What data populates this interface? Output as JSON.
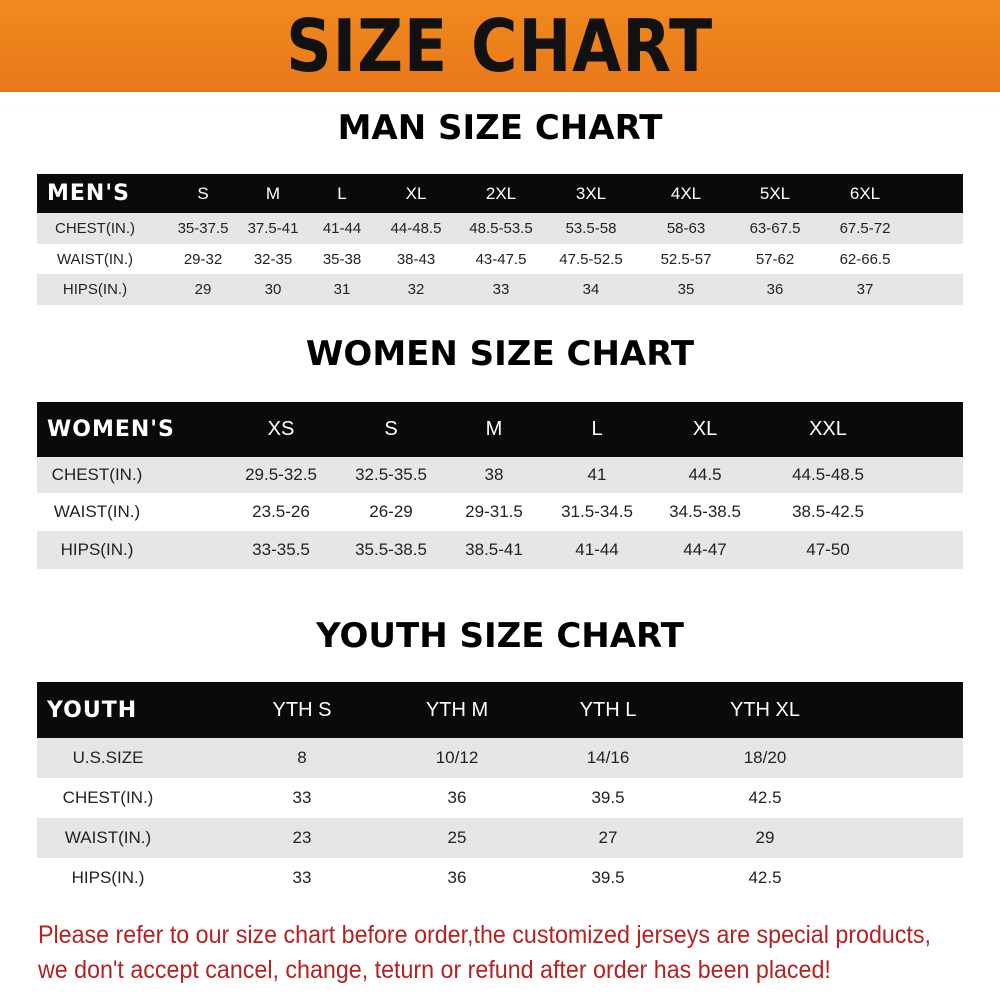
{
  "banner": "SIZE CHART",
  "men": {
    "title": "MAN SIZE CHART",
    "header": [
      "MEN'S",
      "S",
      "M",
      "L",
      "XL",
      "2XL",
      "3XL",
      "4XL",
      "5XL",
      "6XL"
    ],
    "rows": [
      [
        "CHEST(IN.)",
        "35-37.5",
        "37.5-41",
        "41-44",
        "44-48.5",
        "48.5-53.5",
        "53.5-58",
        "58-63",
        "63-67.5",
        "67.5-72"
      ],
      [
        "WAIST(IN.)",
        "29-32",
        "32-35",
        "35-38",
        "38-43",
        "43-47.5",
        "47.5-52.5",
        "52.5-57",
        "57-62",
        "62-66.5"
      ],
      [
        "HIPS(IN.)",
        "29",
        "30",
        "31",
        "32",
        "33",
        "34",
        "35",
        "36",
        "37"
      ]
    ]
  },
  "women": {
    "title": "WOMEN SIZE CHART",
    "header": [
      "WOMEN'S",
      "XS",
      "S",
      "M",
      "L",
      "XL",
      "XXL"
    ],
    "rows": [
      [
        "CHEST(IN.)",
        "29.5-32.5",
        "32.5-35.5",
        "38",
        "41",
        "44.5",
        "44.5-48.5"
      ],
      [
        "WAIST(IN.)",
        "23.5-26",
        "26-29",
        "29-31.5",
        "31.5-34.5",
        "34.5-38.5",
        "38.5-42.5"
      ],
      [
        "HIPS(IN.)",
        "33-35.5",
        "35.5-38.5",
        "38.5-41",
        "41-44",
        "44-47",
        "47-50"
      ]
    ]
  },
  "youth": {
    "title": "YOUTH SIZE CHART",
    "header": [
      "YOUTH",
      "YTH S",
      "YTH M",
      "YTH L",
      "YTH XL"
    ],
    "rows": [
      [
        "U.S.SIZE",
        "8",
        "10/12",
        "14/16",
        "18/20"
      ],
      [
        "CHEST(IN.)",
        "33",
        "36",
        "39.5",
        "42.5"
      ],
      [
        "WAIST(IN.)",
        "23",
        "25",
        "27",
        "29"
      ],
      [
        "HIPS(IN.)",
        "33",
        "36",
        "39.5",
        "42.5"
      ]
    ]
  },
  "notice": {
    "line1": "Please refer to our size chart before order,the customized jerseys are special products,",
    "line2": "we don't accept cancel, change, teturn or refund after order has been placed!"
  },
  "colors": {
    "banner": "#ef821c",
    "header_bg": "#0b0909",
    "stripe": "#e6e6e6",
    "notice": "#b52222"
  }
}
